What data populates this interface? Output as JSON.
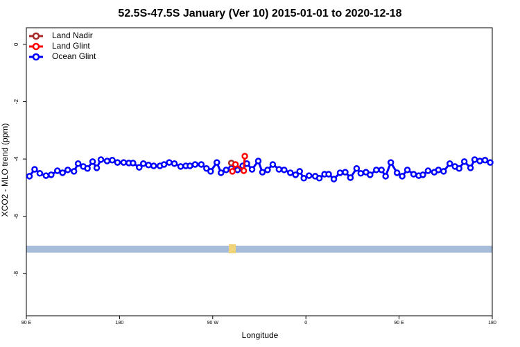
{
  "chart_data": {
    "type": "line",
    "title": "52.5S-47.5S January (Ver 10)   2015-01-01 to 2020-12-18",
    "xlabel": "Longitude",
    "ylabel": "XCO2 - MLO trend (ppm)",
    "xlim": [
      90,
      540
    ],
    "ylim": [
      -9.47,
      0.58
    ],
    "xticks": [
      {
        "value": 90,
        "label": "90 E"
      },
      180,
      {
        "value": 270,
        "label": "90 W"
      },
      {
        "value": 360,
        "label": "0"
      },
      {
        "value": 450,
        "label": "90 E"
      },
      {
        "value": 540,
        "label": "180"
      }
    ],
    "yticks": [
      0,
      -2,
      -4,
      -6,
      -8
    ],
    "legend": "top-left",
    "series": [
      {
        "name": "Land Nadir",
        "color": "#a52a2a",
        "x": [
          288
        ],
        "values": [
          -4.14
        ]
      },
      {
        "name": "Land Glint",
        "color": "#ff0000",
        "x": [
          289,
          292,
          300,
          301
        ],
        "values": [
          -4.43,
          -4.19,
          -4.41,
          -3.9
        ]
      },
      {
        "name": "Ocean Glint",
        "color": "#0000ff",
        "x": [
          93,
          98,
          103,
          109,
          114,
          120,
          125,
          130,
          136,
          140,
          145,
          149,
          154,
          158,
          162,
          168,
          173,
          178,
          184,
          189,
          193,
          199,
          203,
          208,
          213,
          219,
          223,
          228,
          233,
          239,
          244,
          248,
          253,
          259,
          264,
          268,
          274,
          278,
          283,
          288,
          294,
          299,
          303,
          308,
          314,
          318,
          323,
          328,
          334,
          339,
          345,
          350,
          354,
          358,
          363,
          369,
          373,
          378,
          382,
          387,
          393,
          398,
          403,
          409,
          413,
          418,
          422,
          428,
          433,
          437,
          442,
          448,
          453,
          458,
          464,
          469,
          473,
          478,
          484,
          488,
          493,
          499,
          504,
          508,
          513,
          519,
          523,
          528,
          533,
          538
        ],
        "values": [
          -4.6,
          -4.36,
          -4.5,
          -4.58,
          -4.55,
          -4.41,
          -4.48,
          -4.38,
          -4.43,
          -4.16,
          -4.26,
          -4.33,
          -4.09,
          -4.31,
          -4.02,
          -4.07,
          -4.04,
          -4.12,
          -4.12,
          -4.14,
          -4.14,
          -4.29,
          -4.16,
          -4.21,
          -4.24,
          -4.24,
          -4.19,
          -4.12,
          -4.16,
          -4.26,
          -4.24,
          -4.24,
          -4.19,
          -4.19,
          -4.33,
          -4.43,
          -4.12,
          -4.48,
          -4.38,
          -4.33,
          -4.38,
          -4.24,
          -4.16,
          -4.36,
          -4.07,
          -4.46,
          -4.38,
          -4.19,
          -4.36,
          -4.38,
          -4.48,
          -4.55,
          -4.43,
          -4.67,
          -4.58,
          -4.6,
          -4.67,
          -4.53,
          -4.53,
          -4.7,
          -4.48,
          -4.46,
          -4.65,
          -4.33,
          -4.5,
          -4.46,
          -4.55,
          -4.38,
          -4.38,
          -4.6,
          -4.12,
          -4.48,
          -4.6,
          -4.38,
          -4.53,
          -4.58,
          -4.55,
          -4.41,
          -4.46,
          -4.38,
          -4.43,
          -4.16,
          -4.26,
          -4.33,
          -4.09,
          -4.31,
          -4.02,
          -4.07,
          -4.04,
          -4.12
        ]
      }
    ]
  }
}
